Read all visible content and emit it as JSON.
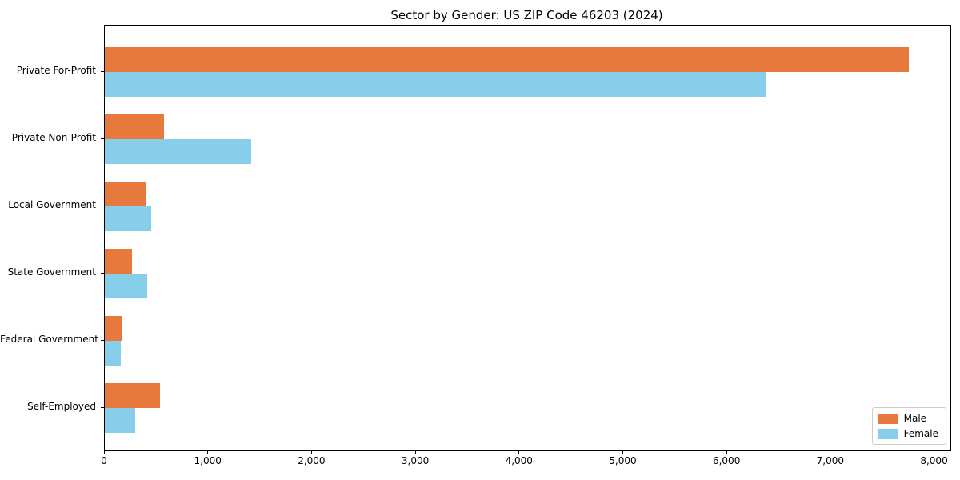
{
  "chart_data": {
    "type": "bar",
    "orientation": "horizontal",
    "title": "Sector by Gender: US ZIP Code 46203 (2024)",
    "categories": [
      "Private For-Profit",
      "Private Non-Profit",
      "Local Government",
      "State Government",
      "Federal Government",
      "Self-Employed"
    ],
    "series": [
      {
        "name": "Male",
        "color": "#E8793C",
        "values": [
          7750,
          570,
          400,
          260,
          160,
          530
        ]
      },
      {
        "name": "Female",
        "color": "#87CEEB",
        "values": [
          6380,
          1410,
          450,
          410,
          150,
          290
        ]
      }
    ],
    "xlim": [
      0,
      8150
    ],
    "x_ticks": [
      0,
      1000,
      2000,
      3000,
      4000,
      5000,
      6000,
      7000,
      8000
    ],
    "x_tick_labels": [
      "0",
      "1,000",
      "2,000",
      "3,000",
      "4,000",
      "5,000",
      "6,000",
      "7,000",
      "8,000"
    ],
    "xlabel": "",
    "ylabel": "",
    "grid": false,
    "legend_position": "lower right",
    "spine_color": "#000000",
    "background_color": "#ffffff"
  }
}
